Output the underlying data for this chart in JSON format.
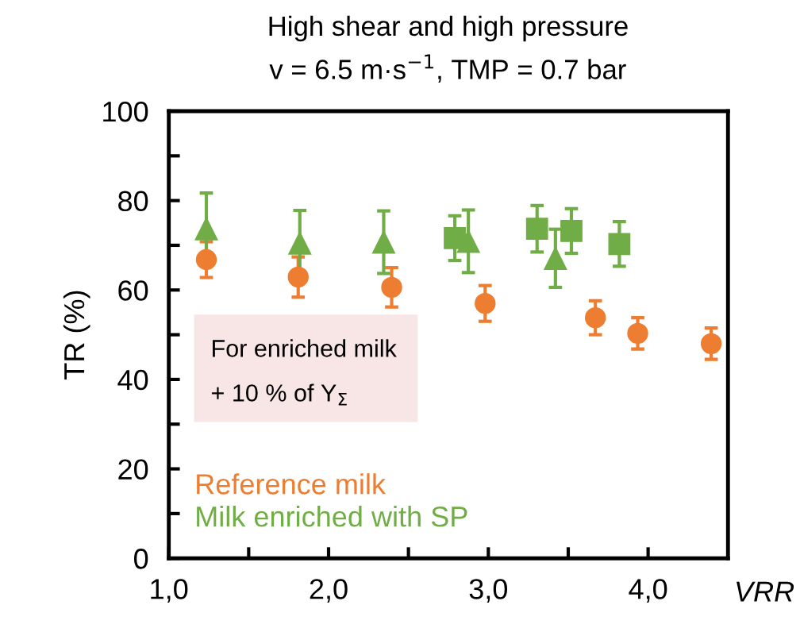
{
  "chart_data": {
    "type": "scatter",
    "title": "High shear and high pressure",
    "subtitle": "v = 6.5 m·s$^{−1}$, TMP = 0.7 bar",
    "xlabel": "VRR",
    "ylabel": "TR (%)",
    "annotations": [
      "For enriched milk",
      "+ 10 % of Y$_{Σ}$"
    ],
    "xlim": [
      1,
      4.5
    ],
    "xticks": [
      {
        "value": 1,
        "label": "1,0"
      },
      {
        "value": 1.5,
        "label": null
      },
      {
        "value": 2,
        "label": "2,0"
      },
      {
        "value": 2.5,
        "label": null
      },
      {
        "value": 3,
        "label": "3,0"
      },
      {
        "value": 3.5,
        "label": null
      },
      {
        "value": 4,
        "label": "4,0"
      }
    ],
    "ylim": [
      0,
      100
    ],
    "yticks": [
      0,
      {
        "value": 10,
        "label": null
      },
      20,
      {
        "value": 30,
        "label": null
      },
      40,
      {
        "value": 50,
        "label": null
      },
      60,
      {
        "value": 70,
        "label": null
      },
      80,
      {
        "value": 90,
        "label": null
      },
      100
    ],
    "grid": false,
    "legend": "bottom left",
    "series": [
      {
        "name": "Reference milk",
        "color": "#ed7d31",
        "marker": "circle",
        "x": [
          1.235,
          1.81,
          2.395,
          2.98,
          3.67,
          3.935,
          4.395
        ],
        "values": [
          66.8,
          62.9,
          60.6,
          57.0,
          53.8,
          50.3,
          48.0
        ],
        "errors": [
          4,
          4.5,
          4.4,
          4,
          3.8,
          3.5,
          3.5
        ]
      },
      {
        "name": "Milk enriched with SP",
        "color": "#70ad47",
        "marker": "triangle",
        "x": [
          1.235,
          1.82,
          2.345,
          2.875,
          3.42
        ],
        "values": [
          73.7,
          70.5,
          70.7,
          70.9,
          67.1
        ],
        "errors": [
          8,
          7.3,
          7,
          7,
          6.5
        ]
      },
      {
        "color": "#70ad47",
        "marker": "square",
        "x": [
          2.79,
          3.305,
          3.52,
          3.82
        ],
        "values": [
          71.6,
          73.7,
          73.2,
          70.3
        ],
        "errors": [
          5,
          5.2,
          5,
          5
        ]
      }
    ]
  }
}
